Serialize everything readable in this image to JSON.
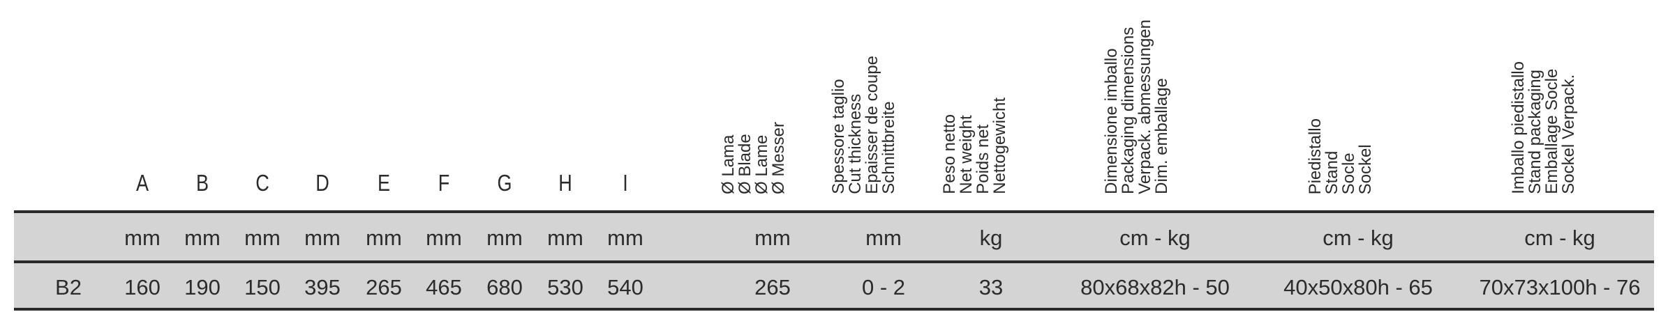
{
  "letter_headers": [
    "A",
    "B",
    "C",
    "D",
    "E",
    "F",
    "G",
    "H",
    "I"
  ],
  "spec_headers": [
    [
      "Ø Lama",
      "Ø Blade",
      "Ø Lame",
      "Ø Messer"
    ],
    [
      "Spessore taglio",
      "Cut thickness",
      "Epaisser de coupe",
      "Schnittbreite"
    ],
    [
      "Peso netto",
      "Net weight",
      "Poids net",
      "Nettogewicht"
    ],
    [
      "Dimensione imballo",
      "Packaging dimensions",
      "Verpack. abmessungen",
      "Dim. emballage"
    ],
    [
      "Piedistallo",
      "Stand",
      "Socle",
      "Sockel"
    ],
    [
      "Imballo piedistallo",
      "Stand packaging",
      "Emballage Socle",
      "Sockel Verpack."
    ]
  ],
  "units_row": {
    "model": "",
    "dims": [
      "mm",
      "mm",
      "mm",
      "mm",
      "mm",
      "mm",
      "mm",
      "mm",
      "mm"
    ],
    "specs": [
      "mm",
      "mm",
      "kg",
      "cm - kg",
      "cm - kg",
      "cm - kg"
    ]
  },
  "b2_row": {
    "model": "B2",
    "dims": [
      "160",
      "190",
      "150",
      "395",
      "265",
      "465",
      "680",
      "530",
      "540"
    ],
    "specs": [
      "265",
      "0 - 2",
      "33",
      "80x68x82h - 50",
      "40x50x80h - 65",
      "70x73x100h - 76"
    ]
  }
}
